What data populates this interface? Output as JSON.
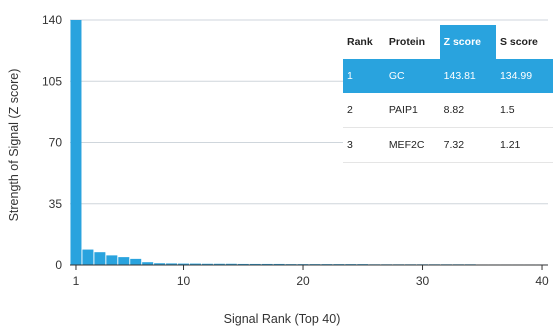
{
  "chart_data": {
    "type": "bar",
    "xlabel": "Signal Rank (Top 40)",
    "ylabel": "Strength of Signal (Z score)",
    "ylim": [
      0,
      140
    ],
    "yticks": [
      0,
      35,
      70,
      105,
      140
    ],
    "xticks": [
      1,
      10,
      20,
      30,
      40
    ],
    "grid": true,
    "bar_color": "#29a3de",
    "x": [
      1,
      2,
      3,
      4,
      5,
      6,
      7,
      8,
      9,
      10,
      11,
      12,
      13,
      14,
      15,
      16,
      17,
      18,
      19,
      20,
      21,
      22,
      23,
      24,
      25,
      26,
      27,
      28,
      29,
      30,
      31,
      32,
      33,
      34,
      35,
      36,
      37,
      38,
      39,
      40
    ],
    "values": [
      143.81,
      8.82,
      7.32,
      5.5,
      4.5,
      3.5,
      1.6,
      1.0,
      0.9,
      0.8,
      0.8,
      0.7,
      0.7,
      0.7,
      0.6,
      0.6,
      0.6,
      0.6,
      0.5,
      0.5,
      0.5,
      0.5,
      0.5,
      0.5,
      0.5,
      0.4,
      0.4,
      0.4,
      0.4,
      0.4,
      0.4,
      0.4,
      0.4,
      0.4,
      0.3,
      0.3,
      0.3,
      0.3,
      0.3,
      0.3
    ]
  },
  "table": {
    "headers": [
      "Rank",
      "Protein",
      "Z score",
      "S score"
    ],
    "highlight_color": "#29a3de",
    "rows": [
      [
        "1",
        "GC",
        "143.81",
        "134.99"
      ],
      [
        "2",
        "PAIP1",
        "8.82",
        "1.5"
      ],
      [
        "3",
        "MEF2C",
        "7.32",
        "1.21"
      ]
    ]
  }
}
